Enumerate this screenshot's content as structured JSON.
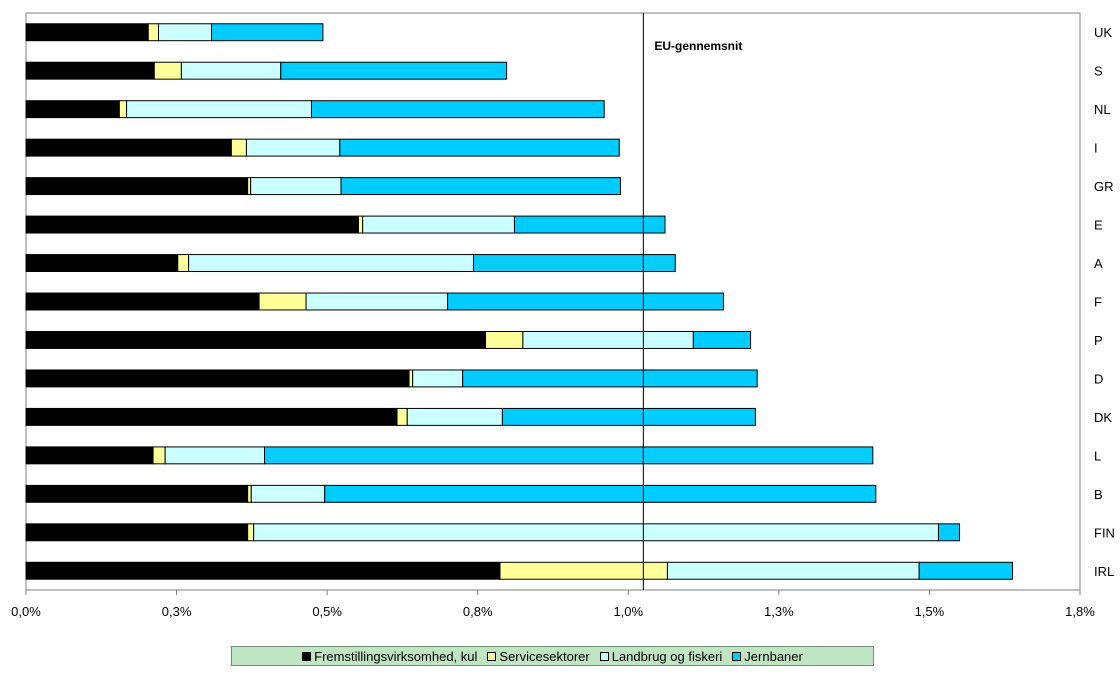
{
  "chart_data": {
    "type": "bar",
    "orientation": "horizontal",
    "stacked": true,
    "categories": [
      "UK",
      "S",
      "NL",
      "I",
      "GR",
      "E",
      "A",
      "F",
      "P",
      "D",
      "DK",
      "L",
      "B",
      "FIN",
      "IRL"
    ],
    "series": [
      {
        "name": "Fremstillingsvirksomhed, kul",
        "color": "#000000",
        "values": [
          0.203,
          0.213,
          0.155,
          0.341,
          0.368,
          0.552,
          0.252,
          0.387,
          0.763,
          0.636,
          0.616,
          0.211,
          0.368,
          0.368,
          0.787
        ]
      },
      {
        "name": "Servicesektorer",
        "color": "#ffff99",
        "values": [
          0.017,
          0.045,
          0.012,
          0.025,
          0.005,
          0.007,
          0.018,
          0.078,
          0.062,
          0.006,
          0.017,
          0.02,
          0.006,
          0.01,
          0.278
        ]
      },
      {
        "name": "Landbrug og fiskeri",
        "color": "#ccffff",
        "values": [
          0.088,
          0.165,
          0.307,
          0.155,
          0.15,
          0.252,
          0.473,
          0.235,
          0.283,
          0.083,
          0.158,
          0.165,
          0.122,
          1.137,
          0.418
        ]
      },
      {
        "name": "Jernbaner",
        "color": "#00ccff",
        "values": [
          0.185,
          0.375,
          0.486,
          0.464,
          0.464,
          0.25,
          0.335,
          0.458,
          0.095,
          0.489,
          0.42,
          1.01,
          0.915,
          0.035,
          0.155
        ]
      }
    ],
    "reference_line": {
      "label": "EU-gennemsnit",
      "value": 1.025
    },
    "xlim": [
      0,
      1.75
    ],
    "x_ticks": [
      0,
      0.25,
      0.5,
      0.75,
      1.0,
      1.25,
      1.5,
      1.75
    ],
    "x_tick_labels": [
      "0,0%",
      "0,3%",
      "0,5%",
      "0,8%",
      "1,0%",
      "1,3%",
      "1,5%",
      "1,8%"
    ],
    "category_axis_position": "right",
    "grid": false,
    "legend_position": "bottom"
  }
}
